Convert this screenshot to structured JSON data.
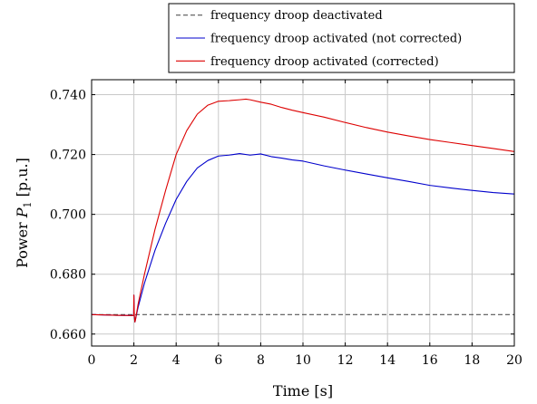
{
  "chart_data": {
    "type": "line",
    "xlabel": "Time [s]",
    "ylabel": "Power P1 [p.u.]",
    "ylabel_parts": {
      "prefix": "Power ",
      "symbol": "P",
      "subscript": "1",
      "suffix": " [p.u.]"
    },
    "xlim": [
      0,
      20
    ],
    "ylim": [
      0.656,
      0.745
    ],
    "xticks": [
      0,
      2,
      4,
      6,
      8,
      10,
      12,
      14,
      16,
      18,
      20
    ],
    "xtick_labels": [
      "0",
      "2",
      "4",
      "6",
      "8",
      "10",
      "12",
      "14",
      "16",
      "18",
      "20"
    ],
    "yticks": [
      0.66,
      0.68,
      0.7,
      0.72,
      0.74
    ],
    "ytick_labels": [
      "0.660",
      "0.680",
      "0.700",
      "0.720",
      "0.740"
    ],
    "grid": true,
    "legend_position": "top-right, above plot",
    "series": [
      {
        "name": "frequency droop deactivated",
        "color": "#555555",
        "style": "dashed",
        "x": [
          0,
          20
        ],
        "y": [
          0.6665,
          0.6665
        ]
      },
      {
        "name": "frequency droop activated (not corrected)",
        "color": "#0000cc",
        "style": "solid",
        "x": [
          0,
          1.0,
          1.99,
          2.0,
          2.02,
          2.05,
          2.08,
          2.2,
          2.5,
          3.0,
          3.5,
          4.0,
          4.5,
          5.0,
          5.5,
          6.0,
          6.5,
          7.0,
          7.5,
          8.0,
          8.5,
          9.0,
          9.5,
          10.0,
          11.0,
          12.0,
          13.0,
          14.0,
          15.0,
          16.0,
          17.0,
          18.0,
          19.0,
          20.0
        ],
        "y": [
          0.6665,
          0.6663,
          0.6662,
          0.673,
          0.666,
          0.664,
          0.665,
          0.669,
          0.677,
          0.688,
          0.697,
          0.705,
          0.711,
          0.7155,
          0.718,
          0.7195,
          0.7198,
          0.7203,
          0.7198,
          0.7202,
          0.7193,
          0.7188,
          0.7182,
          0.7178,
          0.7162,
          0.7148,
          0.7135,
          0.7122,
          0.711,
          0.7097,
          0.7088,
          0.708,
          0.7073,
          0.7068
        ]
      },
      {
        "name": "frequency droop activated (corrected)",
        "color": "#dd0000",
        "style": "solid",
        "x": [
          0,
          1.0,
          1.99,
          2.0,
          2.02,
          2.05,
          2.08,
          2.2,
          2.5,
          3.0,
          3.5,
          4.0,
          4.5,
          5.0,
          5.5,
          6.0,
          6.5,
          7.0,
          7.3,
          7.5,
          8.0,
          8.5,
          9.0,
          9.5,
          10.0,
          11.0,
          12.0,
          13.0,
          14.0,
          15.0,
          16.0,
          17.0,
          18.0,
          19.0,
          20.0
        ],
        "y": [
          0.6665,
          0.6663,
          0.6662,
          0.673,
          0.666,
          0.664,
          0.665,
          0.67,
          0.68,
          0.695,
          0.708,
          0.72,
          0.728,
          0.7335,
          0.7365,
          0.7378,
          0.738,
          0.7383,
          0.7385,
          0.7383,
          0.7375,
          0.7368,
          0.7357,
          0.7348,
          0.734,
          0.7325,
          0.7307,
          0.729,
          0.7275,
          0.7262,
          0.725,
          0.724,
          0.723,
          0.722,
          0.721
        ]
      }
    ]
  }
}
